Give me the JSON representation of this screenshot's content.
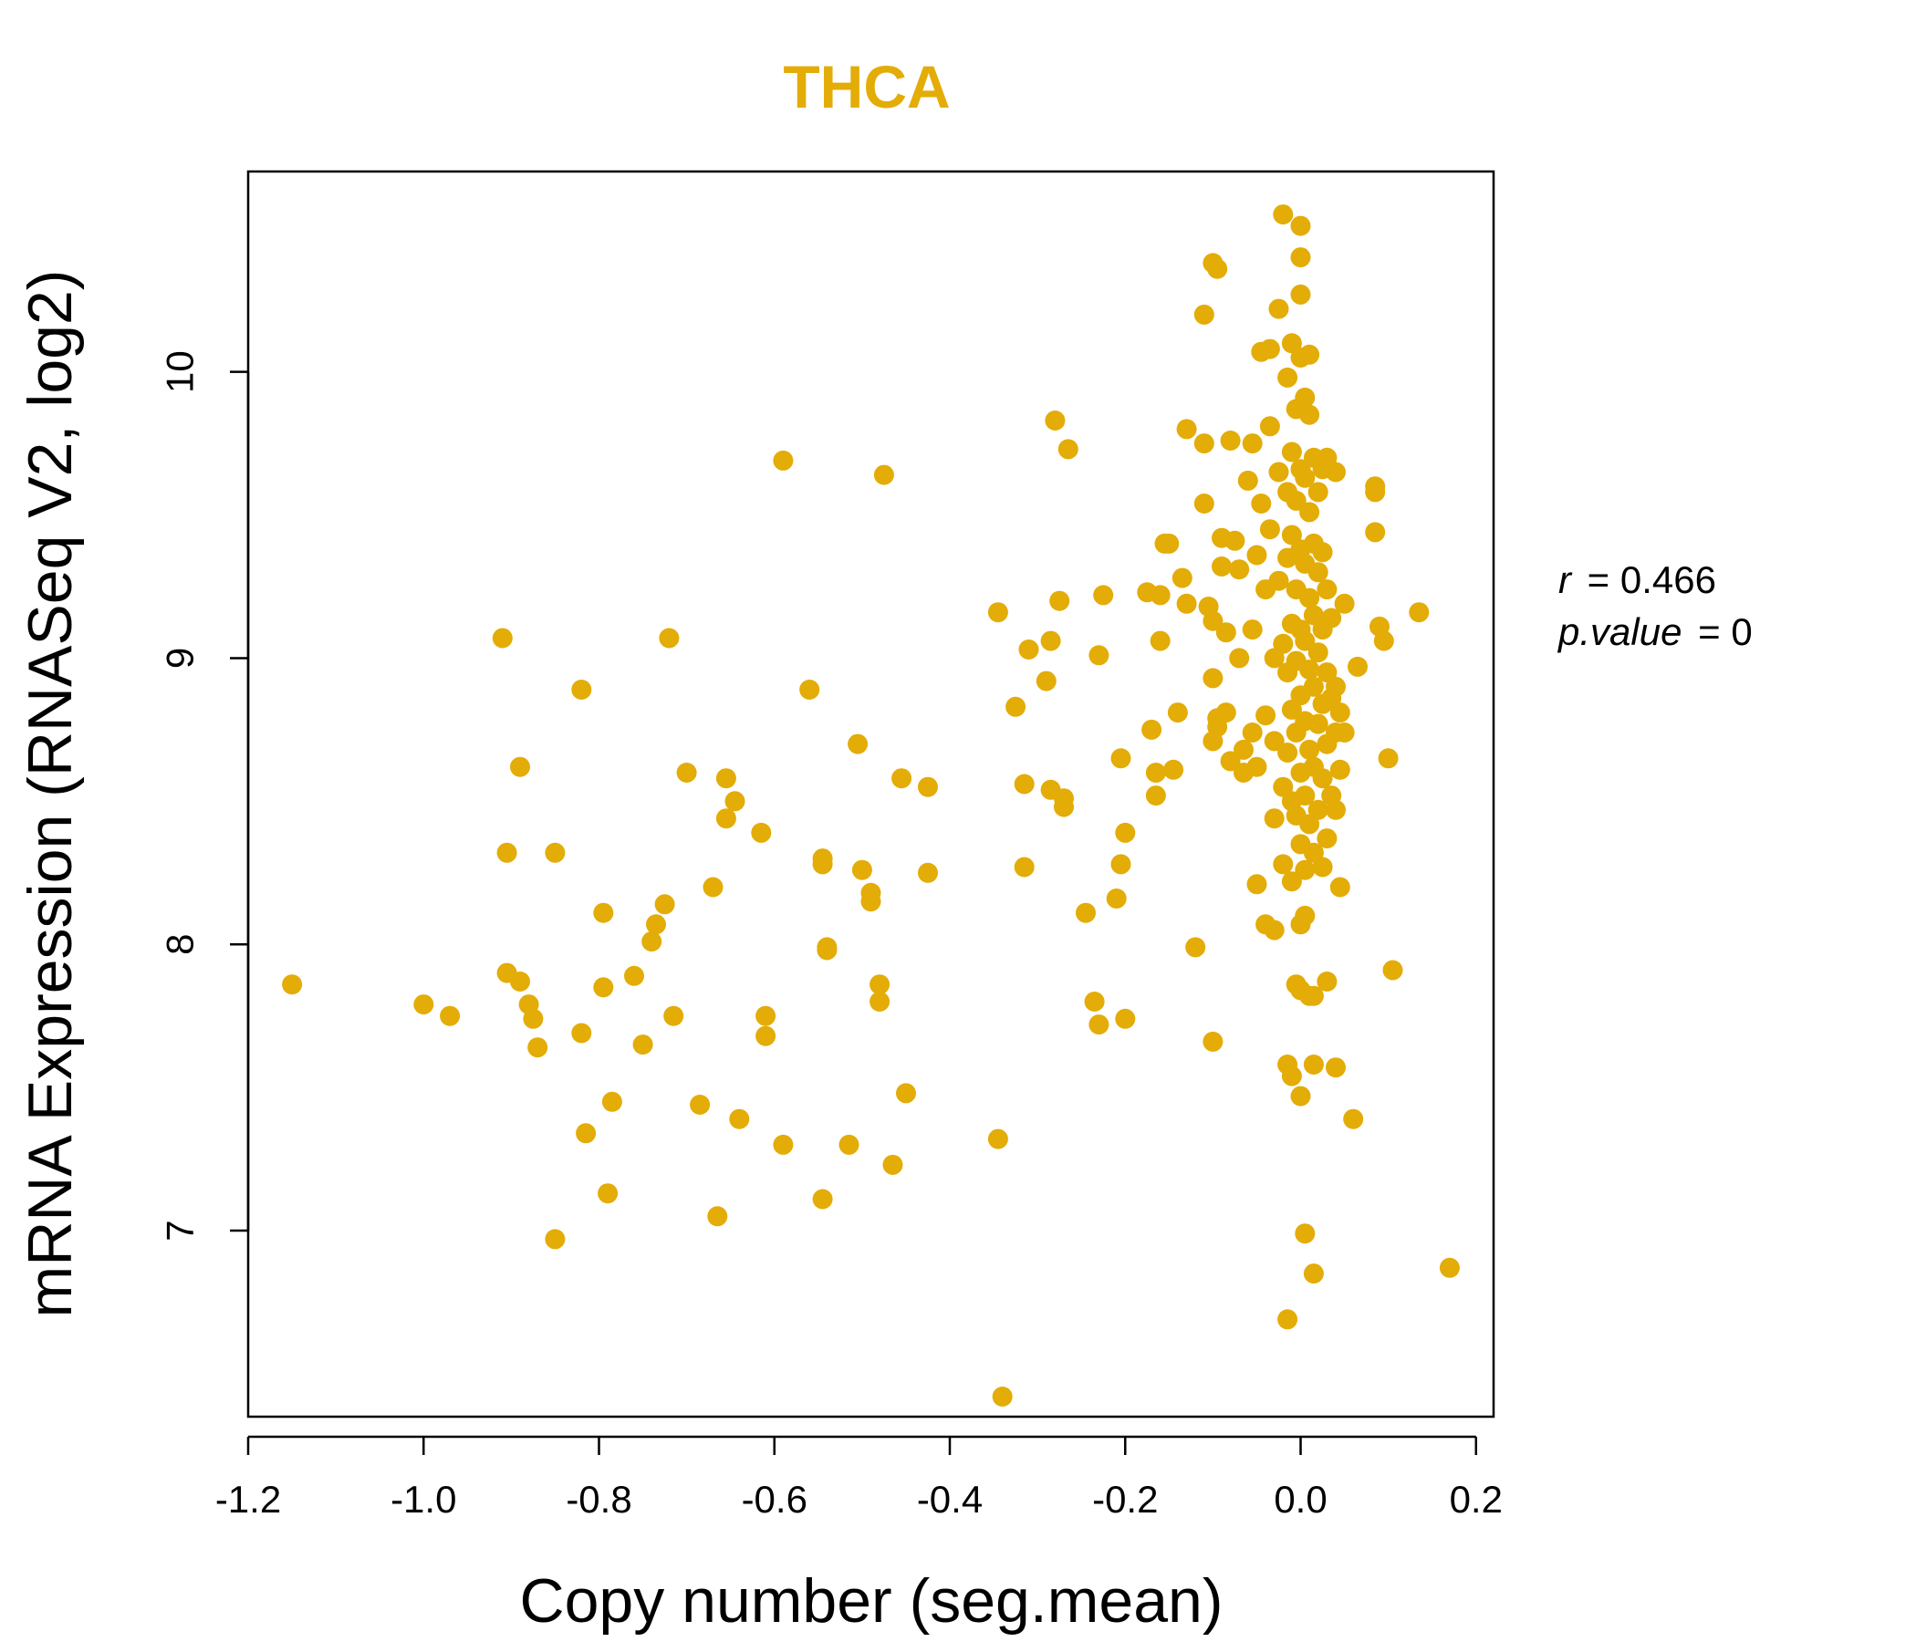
{
  "colors": {
    "accent": "#E3AC07",
    "axis": "#000000",
    "background": "#FFFFFF"
  },
  "chart_data": {
    "type": "scatter",
    "title": "THCA",
    "xlabel": "Copy number (seg.mean)",
    "ylabel": "mRNA Expression (RNASeq V2, log2)",
    "xlim": [
      -1.2,
      0.22
    ],
    "ylim": [
      6.35,
      10.7
    ],
    "x_ticks": [
      -1.2,
      -1.0,
      -0.8,
      -0.6,
      -0.4,
      -0.2,
      0.0,
      0.2
    ],
    "x_tick_labels": [
      "-1.2",
      "-1.0",
      "-0.8",
      "-0.6",
      "-0.4",
      "-0.2",
      "0.0",
      "0.2"
    ],
    "y_ticks": [
      7,
      8,
      9,
      10
    ],
    "y_tick_labels": [
      "7",
      "8",
      "9",
      "10"
    ],
    "grid": false,
    "stats": {
      "r_label": "r",
      "r_value": "0.466",
      "p_label": "p.value",
      "p_value": "0"
    },
    "points": [
      [
        -1.15,
        7.86
      ],
      [
        -1.0,
        7.79
      ],
      [
        -0.97,
        7.75
      ],
      [
        -0.91,
        9.07
      ],
      [
        -0.905,
        8.32
      ],
      [
        -0.905,
        7.9
      ],
      [
        -0.89,
        7.87
      ],
      [
        -0.89,
        8.62
      ],
      [
        -0.88,
        7.79
      ],
      [
        -0.875,
        7.74
      ],
      [
        -0.87,
        7.64
      ],
      [
        -0.85,
        8.32
      ],
      [
        -0.85,
        6.97
      ],
      [
        -0.82,
        8.89
      ],
      [
        -0.82,
        7.69
      ],
      [
        -0.815,
        7.34
      ],
      [
        -0.795,
        8.11
      ],
      [
        -0.795,
        7.85
      ],
      [
        -0.79,
        7.13
      ],
      [
        -0.785,
        7.45
      ],
      [
        -0.76,
        7.89
      ],
      [
        -0.75,
        7.65
      ],
      [
        -0.74,
        8.01
      ],
      [
        -0.735,
        8.07
      ],
      [
        -0.725,
        8.14
      ],
      [
        -0.72,
        9.07
      ],
      [
        -0.715,
        7.75
      ],
      [
        -0.7,
        8.6
      ],
      [
        -0.685,
        7.44
      ],
      [
        -0.67,
        8.2
      ],
      [
        -0.665,
        7.05
      ],
      [
        -0.655,
        8.58
      ],
      [
        -0.655,
        8.44
      ],
      [
        -0.645,
        8.5
      ],
      [
        -0.64,
        7.39
      ],
      [
        -0.615,
        8.39
      ],
      [
        -0.61,
        7.75
      ],
      [
        -0.61,
        7.68
      ],
      [
        -0.59,
        9.69
      ],
      [
        -0.59,
        7.3
      ],
      [
        -0.56,
        8.89
      ],
      [
        -0.545,
        8.3
      ],
      [
        -0.545,
        8.28
      ],
      [
        -0.54,
        7.99
      ],
      [
        -0.54,
        7.98
      ],
      [
        -0.545,
        7.11
      ],
      [
        -0.515,
        7.3
      ],
      [
        -0.505,
        8.7
      ],
      [
        -0.5,
        8.26
      ],
      [
        -0.49,
        8.18
      ],
      [
        -0.49,
        8.15
      ],
      [
        -0.48,
        7.86
      ],
      [
        -0.48,
        7.8
      ],
      [
        -0.475,
        9.64
      ],
      [
        -0.465,
        7.23
      ],
      [
        -0.455,
        8.58
      ],
      [
        -0.45,
        7.48
      ],
      [
        -0.425,
        8.55
      ],
      [
        -0.425,
        8.25
      ],
      [
        -0.345,
        9.16
      ],
      [
        -0.345,
        7.32
      ],
      [
        -0.34,
        6.42
      ],
      [
        -0.325,
        8.83
      ],
      [
        -0.315,
        8.56
      ],
      [
        -0.315,
        8.27
      ],
      [
        -0.31,
        9.03
      ],
      [
        -0.29,
        8.92
      ],
      [
        -0.285,
        9.06
      ],
      [
        -0.285,
        8.54
      ],
      [
        -0.28,
        9.83
      ],
      [
        -0.275,
        9.2
      ],
      [
        -0.27,
        8.48
      ],
      [
        -0.27,
        8.51
      ],
      [
        -0.265,
        9.73
      ],
      [
        -0.245,
        8.11
      ],
      [
        -0.235,
        7.8
      ],
      [
        -0.23,
        7.72
      ],
      [
        -0.23,
        9.01
      ],
      [
        -0.225,
        9.22
      ],
      [
        -0.21,
        8.16
      ],
      [
        -0.205,
        8.65
      ],
      [
        -0.205,
        8.28
      ],
      [
        -0.2,
        8.39
      ],
      [
        -0.2,
        7.74
      ],
      [
        -0.175,
        9.23
      ],
      [
        -0.17,
        8.75
      ],
      [
        -0.165,
        8.6
      ],
      [
        -0.165,
        8.52
      ],
      [
        -0.16,
        9.22
      ],
      [
        -0.16,
        9.06
      ],
      [
        -0.155,
        9.4
      ],
      [
        -0.15,
        9.4
      ],
      [
        -0.145,
        8.61
      ],
      [
        -0.14,
        8.81
      ],
      [
        -0.135,
        9.28
      ],
      [
        -0.13,
        9.8
      ],
      [
        -0.13,
        9.19
      ],
      [
        -0.12,
        7.99
      ],
      [
        -0.11,
        10.2
      ],
      [
        -0.11,
        9.75
      ],
      [
        -0.11,
        9.54
      ],
      [
        -0.105,
        9.18
      ],
      [
        -0.1,
        9.13
      ],
      [
        -0.1,
        8.93
      ],
      [
        -0.1,
        8.71
      ],
      [
        -0.095,
        8.79
      ],
      [
        -0.095,
        8.76
      ],
      [
        -0.1,
        7.66
      ],
      [
        -0.1,
        10.38
      ],
      [
        -0.095,
        10.36
      ],
      [
        -0.09,
        9.42
      ],
      [
        -0.09,
        9.32
      ],
      [
        -0.085,
        9.09
      ],
      [
        -0.085,
        8.81
      ],
      [
        -0.08,
        8.64
      ],
      [
        -0.08,
        9.76
      ],
      [
        -0.075,
        9.41
      ],
      [
        -0.07,
        9.31
      ],
      [
        -0.07,
        9.0
      ],
      [
        -0.065,
        8.6
      ],
      [
        -0.065,
        8.68
      ],
      [
        -0.06,
        9.62
      ],
      [
        -0.055,
        9.75
      ],
      [
        -0.055,
        9.1
      ],
      [
        -0.055,
        8.74
      ],
      [
        -0.05,
        9.36
      ],
      [
        -0.05,
        8.62
      ],
      [
        -0.045,
        10.07
      ],
      [
        -0.045,
        9.54
      ],
      [
        -0.04,
        9.24
      ],
      [
        -0.04,
        8.8
      ],
      [
        -0.035,
        10.08
      ],
      [
        -0.035,
        9.81
      ],
      [
        -0.035,
        9.45
      ],
      [
        -0.03,
        9.0
      ],
      [
        -0.03,
        8.71
      ],
      [
        -0.03,
        8.44
      ],
      [
        -0.025,
        10.22
      ],
      [
        -0.025,
        9.65
      ],
      [
        -0.025,
        9.27
      ],
      [
        -0.02,
        9.05
      ],
      [
        -0.02,
        8.55
      ],
      [
        -0.02,
        8.28
      ],
      [
        -0.02,
        10.55
      ],
      [
        -0.015,
        9.98
      ],
      [
        -0.015,
        9.58
      ],
      [
        -0.015,
        9.35
      ],
      [
        -0.015,
        8.95
      ],
      [
        -0.015,
        8.67
      ],
      [
        -0.01,
        10.1
      ],
      [
        -0.01,
        9.72
      ],
      [
        -0.01,
        9.43
      ],
      [
        -0.01,
        9.12
      ],
      [
        -0.01,
        8.82
      ],
      [
        -0.01,
        8.5
      ],
      [
        -0.01,
        8.22
      ],
      [
        -0.005,
        9.87
      ],
      [
        -0.005,
        9.55
      ],
      [
        -0.005,
        9.24
      ],
      [
        -0.005,
        8.99
      ],
      [
        -0.005,
        8.74
      ],
      [
        -0.005,
        8.45
      ],
      [
        0.0,
        10.05
      ],
      [
        0.0,
        9.66
      ],
      [
        0.0,
        9.38
      ],
      [
        0.0,
        9.1
      ],
      [
        0.0,
        8.87
      ],
      [
        0.0,
        8.6
      ],
      [
        0.0,
        8.35
      ],
      [
        0.0,
        8.07
      ],
      [
        0.0,
        10.51
      ],
      [
        0.0,
        10.4
      ],
      [
        0.0,
        10.27
      ],
      [
        0.005,
        9.91
      ],
      [
        0.005,
        9.63
      ],
      [
        0.005,
        9.33
      ],
      [
        0.005,
        9.06
      ],
      [
        0.005,
        8.78
      ],
      [
        0.005,
        8.52
      ],
      [
        0.005,
        8.26
      ],
      [
        0.01,
        9.85
      ],
      [
        0.01,
        9.51
      ],
      [
        0.01,
        9.21
      ],
      [
        0.01,
        8.96
      ],
      [
        0.01,
        8.68
      ],
      [
        0.01,
        8.42
      ],
      [
        0.01,
        10.06
      ],
      [
        0.015,
        9.7
      ],
      [
        0.015,
        9.4
      ],
      [
        0.015,
        9.15
      ],
      [
        0.015,
        8.9
      ],
      [
        0.015,
        8.62
      ],
      [
        0.015,
        8.32
      ],
      [
        0.02,
        9.58
      ],
      [
        0.02,
        9.3
      ],
      [
        0.02,
        9.02
      ],
      [
        0.02,
        8.77
      ],
      [
        0.02,
        8.47
      ],
      [
        0.025,
        9.66
      ],
      [
        0.025,
        9.37
      ],
      [
        0.025,
        9.1
      ],
      [
        0.025,
        8.84
      ],
      [
        0.025,
        8.58
      ],
      [
        0.025,
        8.27
      ],
      [
        0.03,
        9.7
      ],
      [
        0.03,
        9.24
      ],
      [
        0.03,
        8.95
      ],
      [
        0.03,
        8.7
      ],
      [
        0.03,
        8.37
      ],
      [
        0.035,
        9.14
      ],
      [
        0.035,
        8.86
      ],
      [
        0.035,
        8.52
      ],
      [
        0.04,
        9.65
      ],
      [
        0.04,
        8.9
      ],
      [
        0.04,
        8.74
      ],
      [
        0.04,
        8.47
      ],
      [
        0.045,
        8.81
      ],
      [
        0.045,
        8.61
      ],
      [
        0.045,
        8.2
      ],
      [
        0.05,
        9.19
      ],
      [
        0.05,
        8.74
      ],
      [
        0.065,
        8.97
      ],
      [
        0.085,
        9.6
      ],
      [
        0.085,
        9.58
      ],
      [
        0.085,
        9.44
      ],
      [
        0.09,
        9.11
      ],
      [
        0.095,
        9.06
      ],
      [
        0.1,
        8.65
      ],
      [
        0.105,
        7.91
      ],
      [
        0.135,
        9.16
      ],
      [
        0.17,
        6.87
      ],
      [
        -0.005,
        7.86
      ],
      [
        0.0,
        7.84
      ],
      [
        0.01,
        7.82
      ],
      [
        0.015,
        7.82
      ],
      [
        0.03,
        7.87
      ],
      [
        -0.015,
        7.58
      ],
      [
        -0.01,
        7.54
      ],
      [
        0.015,
        7.58
      ],
      [
        0.04,
        7.57
      ],
      [
        0.0,
        7.47
      ],
      [
        0.06,
        7.39
      ],
      [
        0.005,
        6.99
      ],
      [
        0.015,
        6.85
      ],
      [
        -0.015,
        6.69
      ],
      [
        -0.04,
        8.07
      ],
      [
        -0.03,
        8.05
      ],
      [
        -0.05,
        8.21
      ],
      [
        0.005,
        8.1
      ]
    ]
  }
}
